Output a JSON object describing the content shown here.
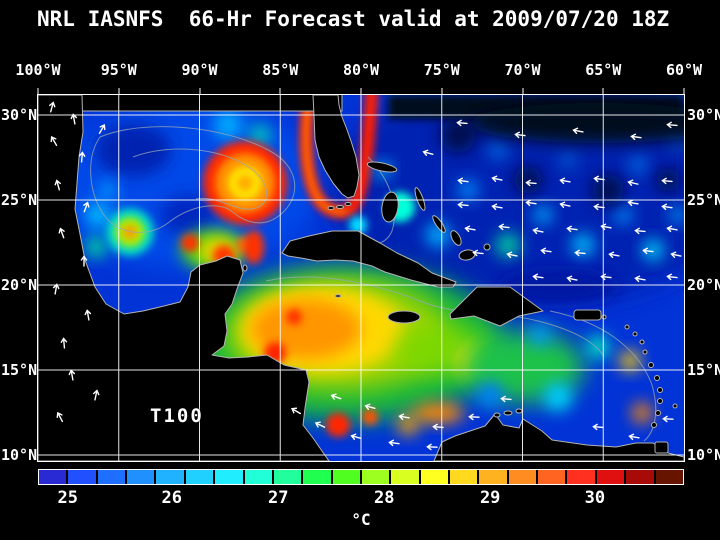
{
  "title": "NRL IASNFS  66-Hr Forecast valid at 2009/07/20 18Z",
  "map": {
    "field_label": "T100",
    "lon_labels": [
      "100°W",
      "95°W",
      "90°W",
      "85°W",
      "80°W",
      "75°W",
      "70°W",
      "65°W",
      "60°W"
    ],
    "lat_labels_left": [
      "30°N",
      "25°N",
      "20°N",
      "15°N",
      "10°N"
    ],
    "lat_labels_right": [
      "30°N",
      "25°N",
      "20°N",
      "15°N",
      "10°N"
    ]
  },
  "colorbar": {
    "tick_labels": [
      "25",
      "26",
      "27",
      "28",
      "29",
      "30"
    ],
    "unit": "°C",
    "colors": [
      "#2a2ad4",
      "#2050ff",
      "#1e6eff",
      "#2090ff",
      "#20b2ff",
      "#20d0ff",
      "#20eeff",
      "#20ffd8",
      "#20ff9c",
      "#20ff50",
      "#50ff20",
      "#9cff20",
      "#d8ff20",
      "#ffff20",
      "#ffd820",
      "#ffb220",
      "#ff8c20",
      "#ff6420",
      "#ff3020",
      "#e01010",
      "#a80a08",
      "#661400"
    ]
  },
  "chart_data": {
    "type": "heatmap",
    "title": "NRL IASNFS 66-Hr Forecast valid at 2009/07/20 18Z",
    "model": "NRL IASNFS",
    "forecast_hour": "66-Hr",
    "valid_time": "2009/07/20 18Z",
    "variable": "T100",
    "unit": "°C",
    "x_axis": {
      "ticks": [
        "100°W",
        "95°W",
        "90°W",
        "85°W",
        "80°W",
        "75°W",
        "70°W",
        "65°W",
        "60°W"
      ],
      "range_deg_west": [
        100,
        60
      ]
    },
    "y_axis": {
      "ticks": [
        "30°N",
        "25°N",
        "20°N",
        "15°N",
        "10°N"
      ],
      "range_deg_north": [
        10,
        31
      ]
    },
    "colorbar_ticks": [
      25,
      26,
      27,
      28,
      29,
      30
    ],
    "grid": true,
    "legend_position": "bottom",
    "features": [
      "Large warm anticyclonic eddy (~29-30°C, red/orange core) in central Gulf of Mexico near 87°W 26°N",
      "Smaller warm eddy (~28°C core) in western Gulf of Mexico near 94.5°W 23°N",
      "Warm Loop Current / Florida Current band (~29°C) wrapping the Florida peninsula",
      "Broad 28-30°C warm pool over the western Caribbean between Yucatan and Jamaica",
      "Hot spots (>30°C) along Honduras, Panama and Colombia coasts",
      "Cooler 25-27°C water (blue) across the open Atlantic east of the Bahamas",
      "Below-scale (black) water along the northern edge of the Atlantic domain",
      "White vector arrows: westward flow over the tropical Atlantic, variable vectors over Mexico",
      "Land masses shown in black with gray coastlines; gray bathymetry contours over ocean"
    ]
  }
}
